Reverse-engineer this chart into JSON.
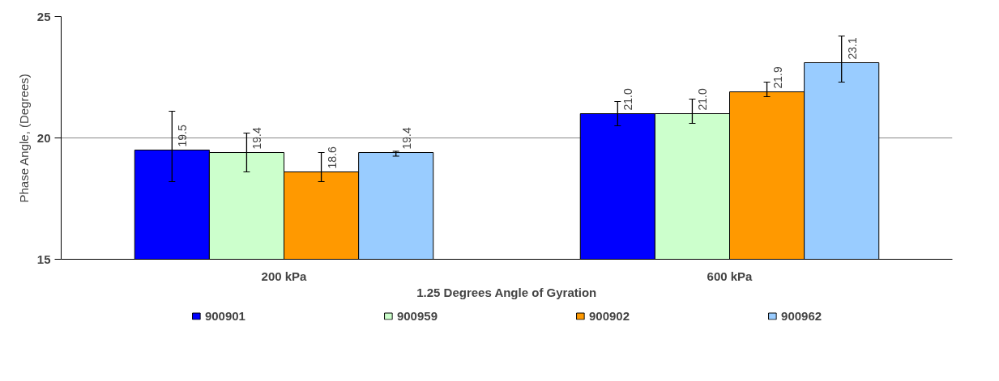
{
  "chart_data": {
    "type": "bar",
    "ylabel": "Phase Angle, (Degrees)",
    "xlabel": "1.25 Degrees Angle of Gyration",
    "categories": [
      "200 kPa",
      "600 kPa"
    ],
    "series": [
      {
        "name": "900901",
        "color": "#0000ff",
        "values": [
          19.5,
          21.0
        ],
        "value_labels": [
          "19.5",
          "21.0"
        ],
        "errors": [
          [
            18.2,
            21.1
          ],
          [
            20.5,
            21.5
          ]
        ]
      },
      {
        "name": "900959",
        "color": "#ccffcc",
        "values": [
          19.4,
          21.0
        ],
        "value_labels": [
          "19.4",
          "21.0"
        ],
        "errors": [
          [
            18.6,
            20.2
          ],
          [
            20.6,
            21.6
          ]
        ]
      },
      {
        "name": "900902",
        "color": "#ff9900",
        "values": [
          18.6,
          21.9
        ],
        "value_labels": [
          "18.6",
          "21.9"
        ],
        "errors": [
          [
            18.2,
            19.4
          ],
          [
            21.7,
            22.3
          ]
        ]
      },
      {
        "name": "900962",
        "color": "#99ccff",
        "values": [
          19.4,
          23.1
        ],
        "value_labels": [
          "19.4",
          "23.1"
        ],
        "errors": [
          [
            19.25,
            19.45
          ],
          [
            22.3,
            24.2
          ]
        ]
      }
    ],
    "ylim": [
      15,
      25
    ],
    "yticks": [
      15,
      20,
      25
    ],
    "grid": "y",
    "legend": "bottom"
  }
}
